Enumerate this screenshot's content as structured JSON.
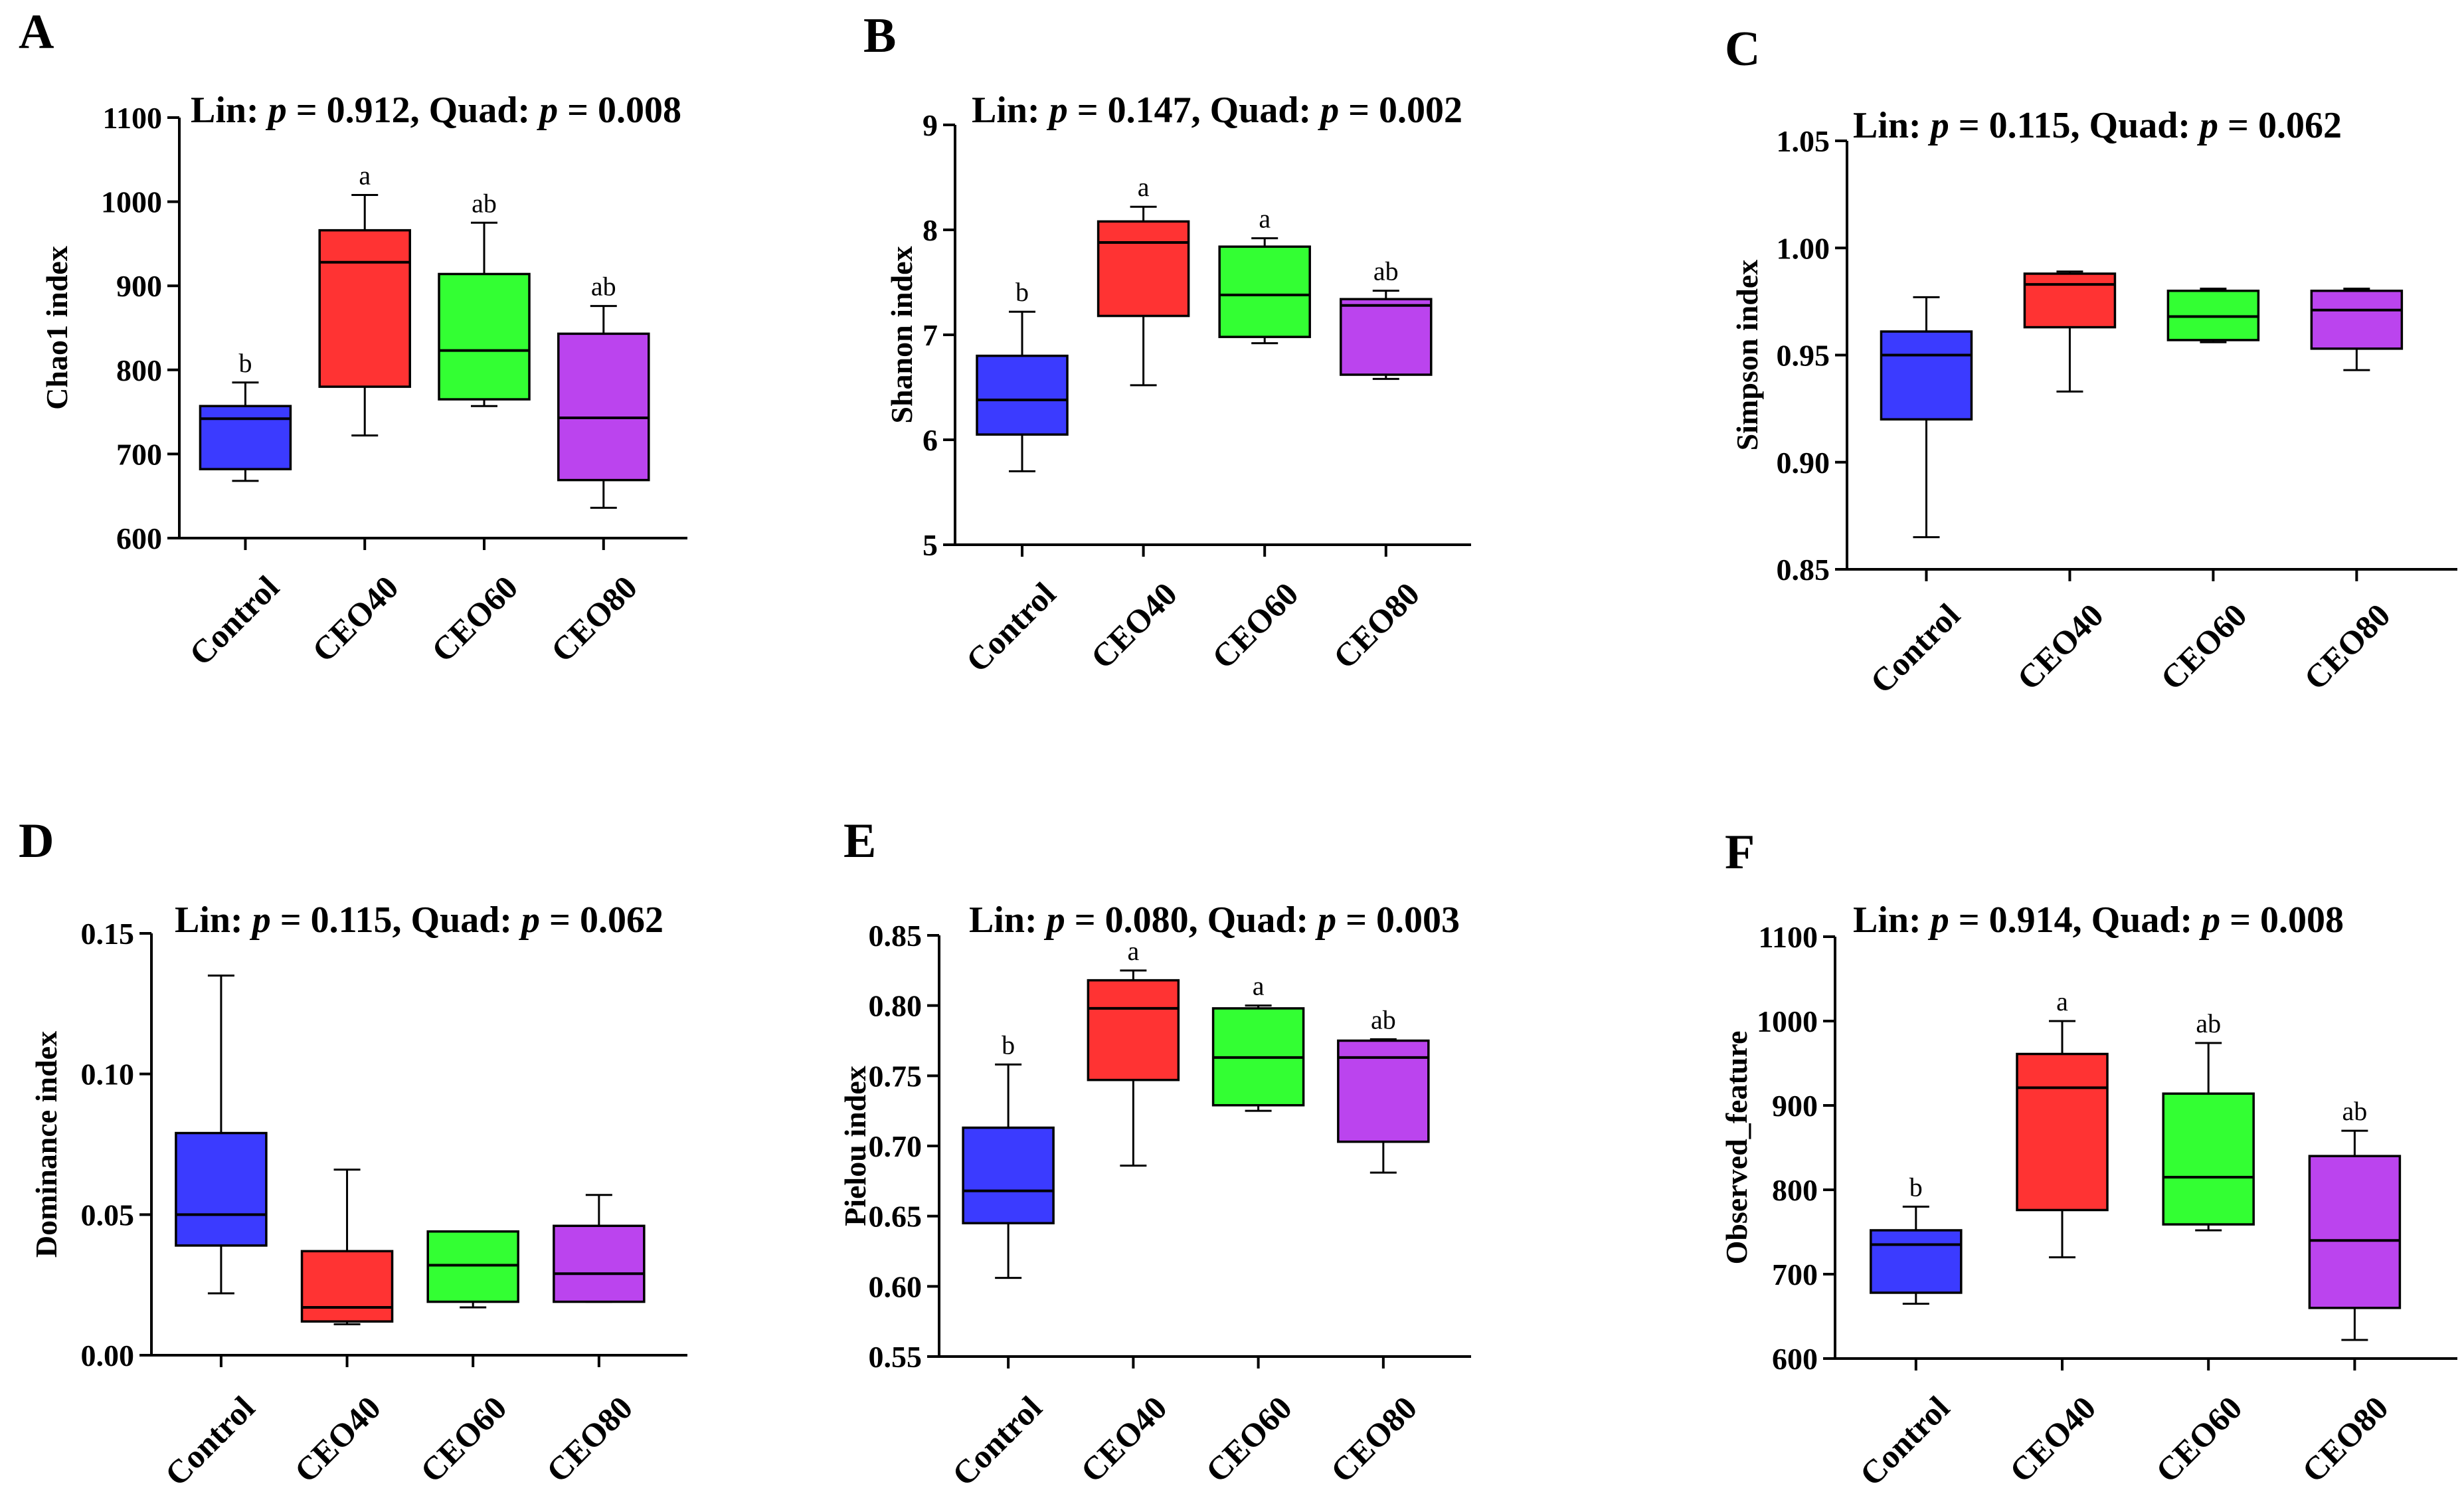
{
  "chart_data": [
    {
      "panel": "A",
      "type": "boxplot",
      "title_parts": [
        "Lin: ",
        "p",
        " = 0.912, Quad: ",
        "p",
        " = 0.008"
      ],
      "ylabel": "Chao1 index",
      "categories": [
        "Control",
        "CEO40",
        "CEO60",
        "CEO80"
      ],
      "ylim": [
        600,
        1100
      ],
      "yticks": [
        600,
        700,
        800,
        900,
        1000,
        1100
      ],
      "ytick_labels": [
        "600",
        "700",
        "800",
        "900",
        "1000",
        "1100"
      ],
      "boxes": [
        {
          "min": 668,
          "q1": 682,
          "median": 742,
          "q3": 757,
          "max": 785,
          "label": "b"
        },
        {
          "min": 722,
          "q1": 780,
          "median": 928,
          "q3": 966,
          "max": 1008,
          "label": "a"
        },
        {
          "min": 757,
          "q1": 765,
          "median": 823,
          "q3": 914,
          "max": 975,
          "label": "ab"
        },
        {
          "min": 636,
          "q1": 669,
          "median": 743,
          "q3": 843,
          "max": 876,
          "label": "ab"
        }
      ]
    },
    {
      "panel": "B",
      "type": "boxplot",
      "title_parts": [
        "Lin: ",
        "p",
        " = 0.147, Quad: ",
        "p",
        " = 0.002"
      ],
      "ylabel": "Shanon index",
      "categories": [
        "Control",
        "CEO40",
        "CEO60",
        "CEO80"
      ],
      "ylim": [
        5,
        9
      ],
      "yticks": [
        5,
        6,
        7,
        8,
        9
      ],
      "ytick_labels": [
        "5",
        "6",
        "7",
        "8",
        "9"
      ],
      "boxes": [
        {
          "min": 5.7,
          "q1": 6.05,
          "median": 6.38,
          "q3": 6.8,
          "max": 7.22,
          "label": "b"
        },
        {
          "min": 6.52,
          "q1": 7.18,
          "median": 7.88,
          "q3": 8.08,
          "max": 8.22,
          "label": "a"
        },
        {
          "min": 6.92,
          "q1": 6.98,
          "median": 7.38,
          "q3": 7.84,
          "max": 7.92,
          "label": "a"
        },
        {
          "min": 6.58,
          "q1": 6.62,
          "median": 7.28,
          "q3": 7.34,
          "max": 7.42,
          "label": "ab"
        }
      ]
    },
    {
      "panel": "C",
      "type": "boxplot",
      "title_parts": [
        "Lin: ",
        "p",
        " = 0.115, Quad: ",
        "p",
        " = 0.062"
      ],
      "ylabel": "Simpson index",
      "categories": [
        "Control",
        "CEO40",
        "CEO60",
        "CEO80"
      ],
      "ylim": [
        0.85,
        1.05
      ],
      "yticks": [
        0.85,
        0.9,
        0.95,
        1.0,
        1.05
      ],
      "ytick_labels": [
        "0.85",
        "0.90",
        "0.95",
        "1.00",
        "1.05"
      ],
      "boxes": [
        {
          "min": 0.865,
          "q1": 0.92,
          "median": 0.95,
          "q3": 0.961,
          "max": 0.977,
          "label": ""
        },
        {
          "min": 0.933,
          "q1": 0.963,
          "median": 0.983,
          "q3": 0.988,
          "max": 0.989,
          "label": ""
        },
        {
          "min": 0.956,
          "q1": 0.957,
          "median": 0.968,
          "q3": 0.98,
          "max": 0.981,
          "label": ""
        },
        {
          "min": 0.943,
          "q1": 0.953,
          "median": 0.971,
          "q3": 0.98,
          "max": 0.981,
          "label": ""
        }
      ]
    },
    {
      "panel": "D",
      "type": "boxplot",
      "title_parts": [
        "Lin: ",
        "p",
        " = 0.115, Quad: ",
        "p",
        " = 0.062"
      ],
      "ylabel": "Dominance index",
      "categories": [
        "Control",
        "CEO40",
        "CEO60",
        "CEO80"
      ],
      "ylim": [
        0,
        0.15
      ],
      "yticks": [
        0,
        0.05,
        0.1,
        0.15
      ],
      "ytick_labels": [
        "0.00",
        "0.05",
        "0.10",
        "0.15"
      ],
      "boxes": [
        {
          "min": 0.022,
          "q1": 0.039,
          "median": 0.05,
          "q3": 0.079,
          "max": 0.135,
          "label": ""
        },
        {
          "min": 0.011,
          "q1": 0.012,
          "median": 0.017,
          "q3": 0.037,
          "max": 0.066,
          "label": ""
        },
        {
          "min": 0.017,
          "q1": 0.019,
          "median": 0.032,
          "q3": 0.044,
          "max": 0.044,
          "label": ""
        },
        {
          "min": 0.019,
          "q1": 0.019,
          "median": 0.029,
          "q3": 0.046,
          "max": 0.057,
          "label": ""
        }
      ]
    },
    {
      "panel": "E",
      "type": "boxplot",
      "title_parts": [
        "Lin: ",
        "p",
        " = 0.080, Quad: ",
        "p",
        " = 0.003"
      ],
      "ylabel": "Pielou index",
      "categories": [
        "Control",
        "CEO40",
        "CEO60",
        "CEO80"
      ],
      "ylim": [
        0.55,
        0.85
      ],
      "yticks": [
        0.55,
        0.6,
        0.65,
        0.7,
        0.75,
        0.8,
        0.85
      ],
      "ytick_labels": [
        "0.55",
        "0.60",
        "0.65",
        "0.70",
        "0.75",
        "0.80",
        "0.85"
      ],
      "boxes": [
        {
          "min": 0.606,
          "q1": 0.645,
          "median": 0.668,
          "q3": 0.713,
          "max": 0.758,
          "label": "b"
        },
        {
          "min": 0.686,
          "q1": 0.747,
          "median": 0.798,
          "q3": 0.818,
          "max": 0.825,
          "label": "a"
        },
        {
          "min": 0.725,
          "q1": 0.729,
          "median": 0.763,
          "q3": 0.798,
          "max": 0.8,
          "label": "a"
        },
        {
          "min": 0.681,
          "q1": 0.703,
          "median": 0.763,
          "q3": 0.775,
          "max": 0.776,
          "label": "ab"
        }
      ]
    },
    {
      "panel": "F",
      "type": "boxplot",
      "title_parts": [
        "Lin: ",
        "p",
        " = 0.914, Quad: ",
        "p",
        " = 0.008"
      ],
      "ylabel": "Observed_feature",
      "categories": [
        "Control",
        "CEO40",
        "CEO60",
        "CEO80"
      ],
      "ylim": [
        600,
        1100
      ],
      "yticks": [
        600,
        700,
        800,
        900,
        1000,
        1100
      ],
      "ytick_labels": [
        "600",
        "700",
        "800",
        "900",
        "1000",
        "1100"
      ],
      "boxes": [
        {
          "min": 665,
          "q1": 678,
          "median": 735,
          "q3": 752,
          "max": 780,
          "label": "b"
        },
        {
          "min": 720,
          "q1": 776,
          "median": 921,
          "q3": 961,
          "max": 1000,
          "label": "a"
        },
        {
          "min": 752,
          "q1": 759,
          "median": 815,
          "q3": 914,
          "max": 974,
          "label": "ab"
        },
        {
          "min": 622,
          "q1": 660,
          "median": 740,
          "q3": 840,
          "max": 870,
          "label": "ab"
        }
      ]
    }
  ],
  "series_colors": [
    "#3b3bff",
    "#ff3333",
    "#33ff33",
    "#bb44ee"
  ]
}
